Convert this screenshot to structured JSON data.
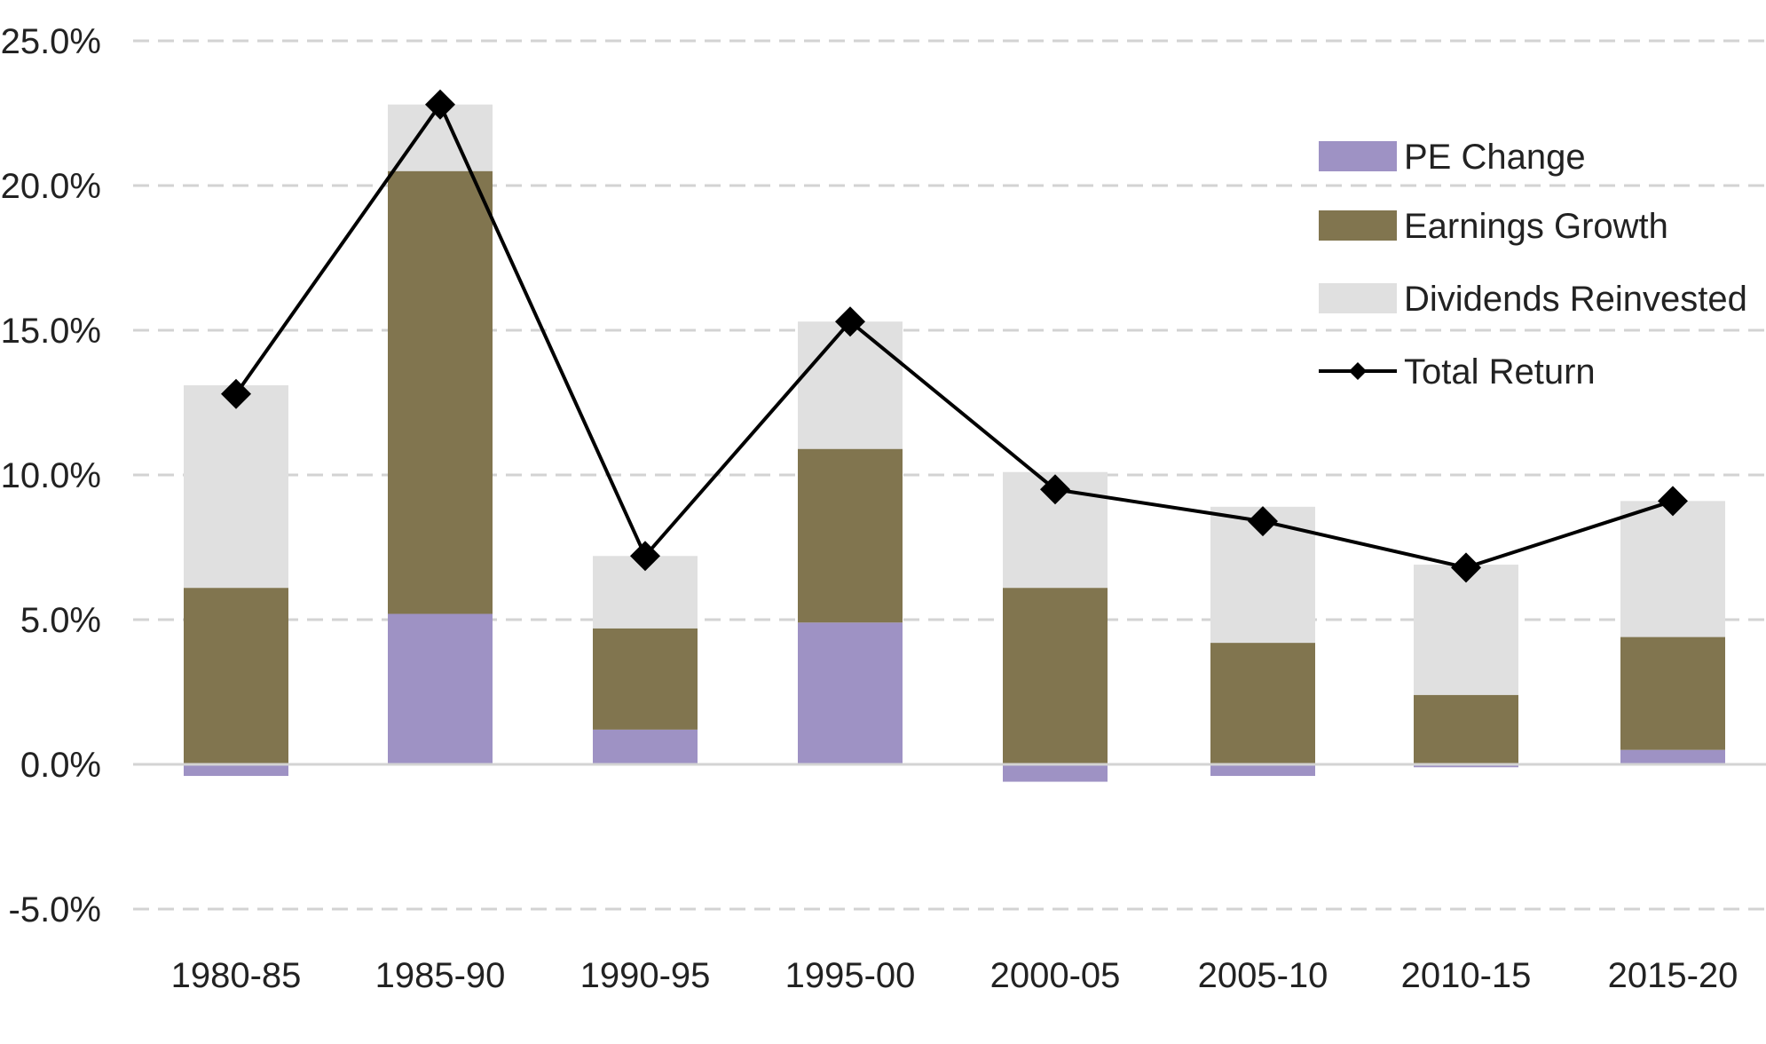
{
  "chart_data": {
    "type": "bar",
    "stacked": true,
    "title": "",
    "xlabel": "",
    "ylabel": "",
    "ylim": [
      -5,
      25
    ],
    "yticks": [
      25,
      20,
      15,
      10,
      5,
      0,
      -5
    ],
    "ytick_labels": [
      "25.0%",
      "20.0%",
      "15.0%",
      "10.0%",
      "5.0%",
      "0.0%",
      "-5.0%"
    ],
    "grid": true,
    "categories": [
      "1980-85",
      "1985-90",
      "1990-95",
      "1995-00",
      "2000-05",
      "2005-10",
      "2010-15",
      "2015-20"
    ],
    "series": [
      {
        "name": "PE Change",
        "kind": "bar",
        "color": "#9e92c4",
        "values": [
          -0.4,
          5.2,
          1.2,
          4.9,
          -0.6,
          -0.4,
          -0.1,
          0.5
        ]
      },
      {
        "name": "Earnings Growth",
        "kind": "bar",
        "color": "#81754f",
        "values": [
          6.1,
          15.3,
          3.5,
          6.0,
          6.1,
          4.2,
          2.4,
          3.9
        ]
      },
      {
        "name": "Dividends Reinvested",
        "kind": "bar",
        "color": "#e0e0e0",
        "values": [
          7.0,
          2.3,
          2.5,
          4.4,
          4.0,
          4.7,
          4.5,
          4.7
        ]
      },
      {
        "name": "Total Return",
        "kind": "line",
        "color": "#000000",
        "marker": "diamond",
        "values": [
          12.8,
          22.8,
          7.2,
          15.3,
          9.5,
          8.4,
          6.8,
          9.1
        ]
      }
    ],
    "legend_position": "top-right"
  }
}
